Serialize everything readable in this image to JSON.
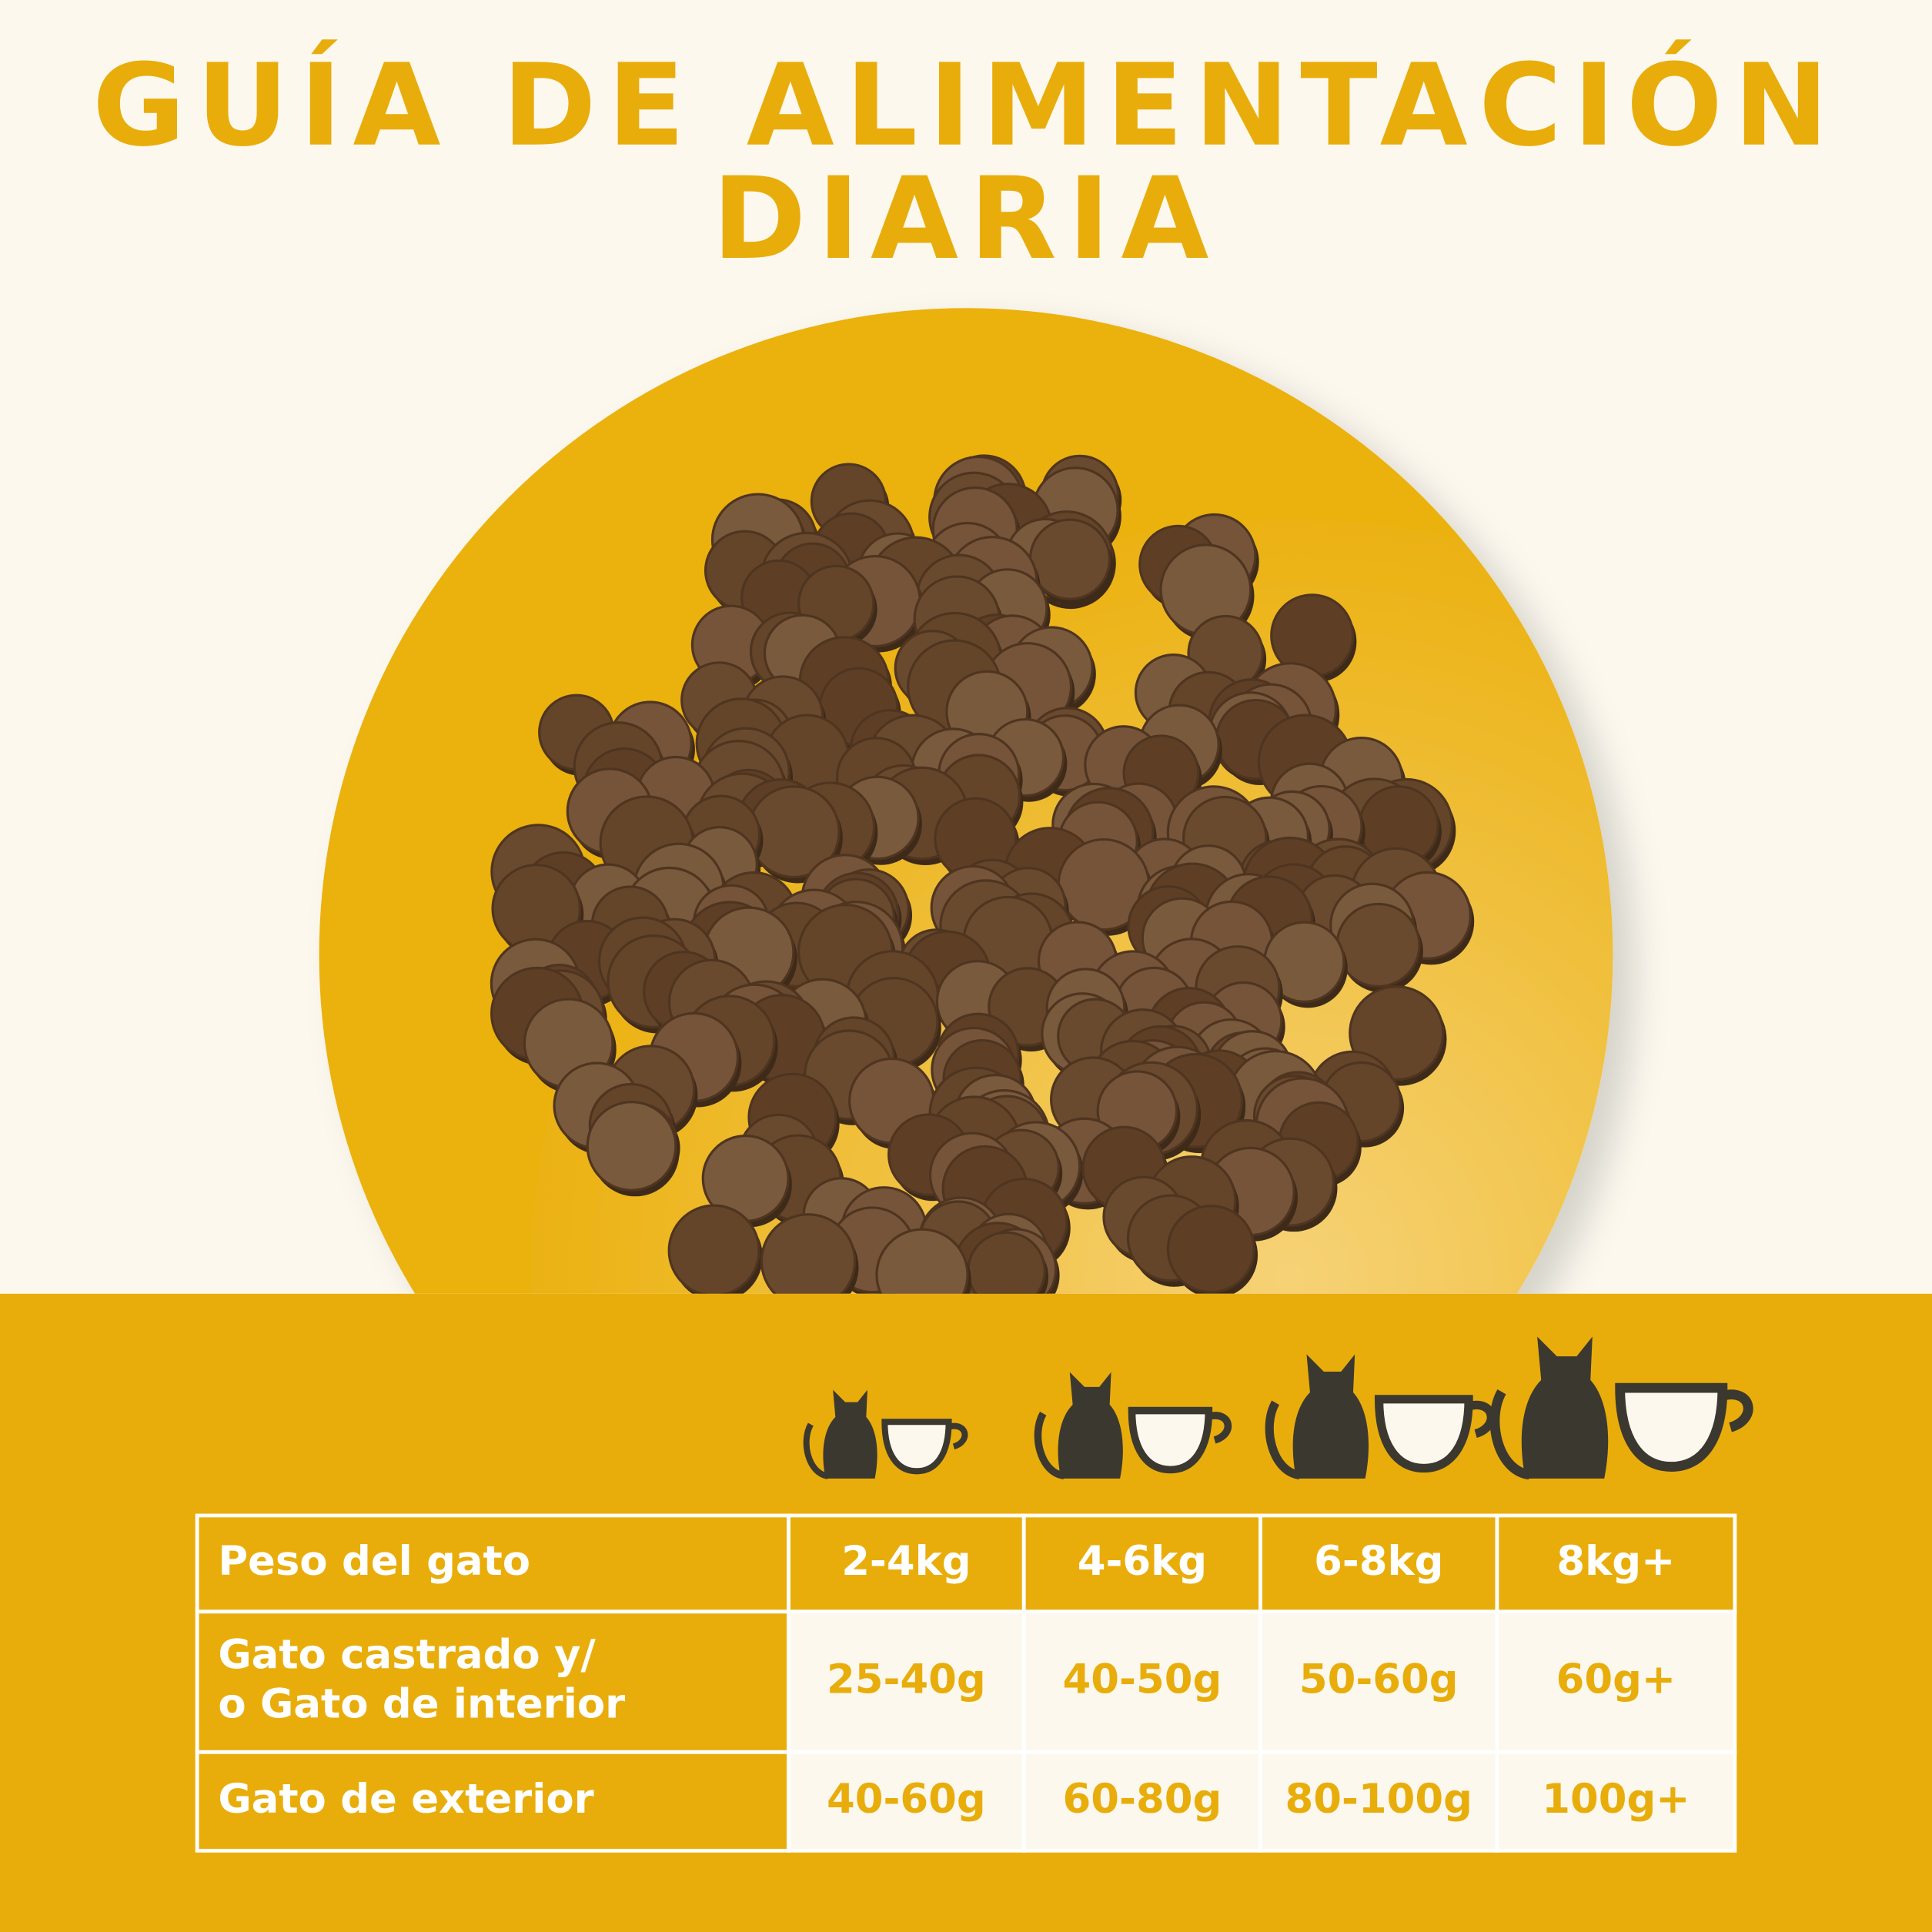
{
  "header": {
    "title": [
      "GUÍA DE ALIMENTACIÓN",
      "DIARIA"
    ]
  },
  "table": {
    "header": [
      "Peso del gato",
      "2-4kg",
      "4-6kg",
      "6-8kg",
      "8kg+"
    ],
    "rows": [
      {
        "label": [
          "Gato castrado y/",
          "o Gato de interior"
        ],
        "values": [
          "25-40g",
          "40-50g",
          "50-60g",
          "60g+"
        ]
      },
      {
        "label": [
          "Gato de exterior"
        ],
        "values": [
          "40-60g",
          "60-80g",
          "80-100g",
          "100g+"
        ]
      }
    ]
  }
}
